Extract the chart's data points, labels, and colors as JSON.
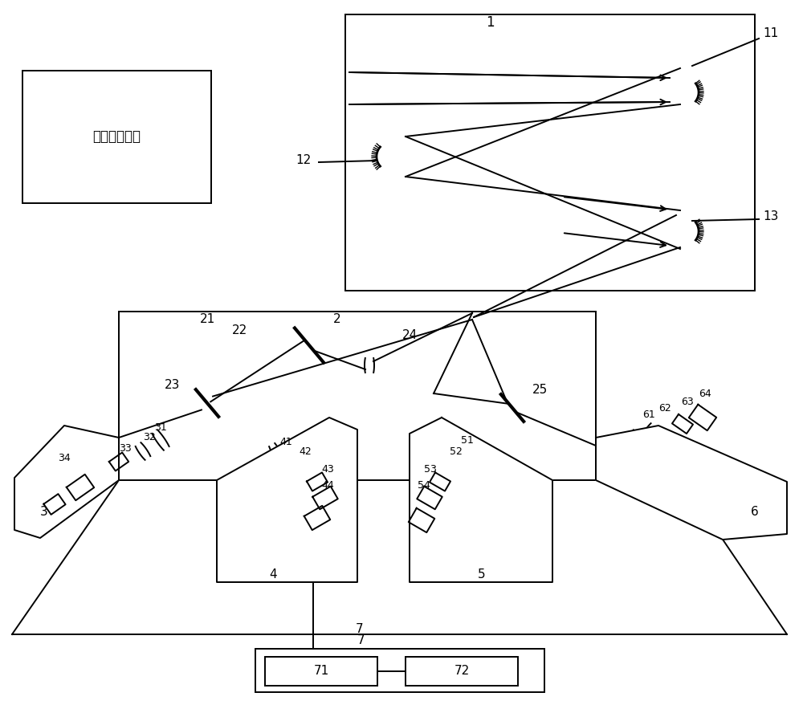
{
  "bg_color": "#ffffff",
  "line_color": "#000000",
  "fig_width": 10.0,
  "fig_height": 8.83,
  "labels": {
    "target_box": "目标与背景光",
    "1": "1",
    "11": "11",
    "12": "12",
    "13": "13",
    "2": "2",
    "21": "21",
    "22": "22",
    "23": "23",
    "24": "24",
    "25": "25",
    "3": "3",
    "31": "31",
    "32": "32",
    "33": "33",
    "34": "34",
    "4": "4",
    "41": "41",
    "42": "42",
    "43": "43",
    "44": "44",
    "5": "5",
    "51": "51",
    "52": "52",
    "53": "53",
    "54": "54",
    "6": "6",
    "61": "61",
    "62": "62",
    "63": "63",
    "64": "64",
    "7": "7",
    "71": "71",
    "72": "72"
  }
}
